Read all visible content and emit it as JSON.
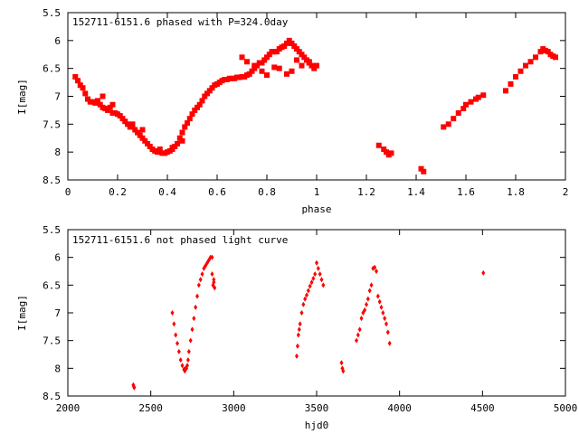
{
  "chart_data": [
    {
      "type": "scatter",
      "title": "152711-6151.6 phased with P=324.0day",
      "xlabel": "phase",
      "ylabel": "I[mag]",
      "xlim": [
        0,
        2
      ],
      "ylim": [
        5.5,
        8.5
      ],
      "y_inverted": true,
      "xticks": [
        "0",
        "0.2",
        "0.4",
        "0.6",
        "0.8",
        "1",
        "1.2",
        "1.4",
        "1.6",
        "1.8",
        "2"
      ],
      "yticks": [
        "5.5",
        "6",
        "6.5",
        "7",
        "7.5",
        "8",
        "8.5"
      ],
      "marker_color": "#ff0000",
      "marker": "square",
      "series": [
        {
          "x": [
            0.03,
            0.04,
            0.05,
            0.06,
            0.07,
            0.08,
            0.09,
            0.1,
            0.11,
            0.12,
            0.13,
            0.14,
            0.15,
            0.16,
            0.17,
            0.18,
            0.19,
            0.2,
            0.21,
            0.22,
            0.23,
            0.24,
            0.25,
            0.26,
            0.27,
            0.28,
            0.29,
            0.3,
            0.31,
            0.32,
            0.33,
            0.34,
            0.35,
            0.36,
            0.37,
            0.38,
            0.39,
            0.4,
            0.41,
            0.42,
            0.43,
            0.44,
            0.45,
            0.46,
            0.47,
            0.48,
            0.49,
            0.5,
            0.51,
            0.52,
            0.53,
            0.54,
            0.55,
            0.56,
            0.57,
            0.58,
            0.59,
            0.6,
            0.61,
            0.62,
            0.63,
            0.64,
            0.65,
            0.66,
            0.67,
            0.68,
            0.69,
            0.7,
            0.71,
            0.72,
            0.73,
            0.74,
            0.75,
            0.76,
            0.77,
            0.78,
            0.79,
            0.8,
            0.81,
            0.82,
            0.83,
            0.84,
            0.85,
            0.86,
            0.87,
            0.88,
            0.89,
            0.9,
            0.91,
            0.92,
            0.93,
            0.94,
            0.95,
            0.96,
            0.97,
            0.98,
            0.99,
            1.0,
            0.7,
            0.72,
            0.75,
            0.78,
            0.8,
            0.83,
            0.85,
            0.88,
            0.9,
            0.92,
            0.94,
            0.97,
            0.26,
            0.3,
            0.37,
            0.42,
            0.46,
            0.14,
            0.18,
            0.19,
            1.25,
            1.27,
            1.28,
            1.29,
            1.3,
            1.42,
            1.43,
            1.51,
            1.53,
            1.55,
            1.57,
            1.59,
            1.6,
            1.62,
            1.64,
            1.65,
            1.67,
            1.76,
            1.78,
            1.8,
            1.82,
            1.84,
            1.86,
            1.88,
            1.9,
            1.91,
            1.92,
            1.93,
            1.94,
            1.95,
            1.96
          ],
          "y": [
            6.65,
            6.72,
            6.8,
            6.85,
            6.95,
            7.05,
            7.1,
            7.1,
            7.12,
            7.08,
            7.15,
            7.2,
            7.22,
            7.25,
            7.2,
            7.3,
            7.3,
            7.32,
            7.35,
            7.4,
            7.45,
            7.5,
            7.55,
            7.55,
            7.6,
            7.65,
            7.7,
            7.75,
            7.8,
            7.85,
            7.9,
            7.95,
            7.98,
            8.0,
            8.0,
            8.02,
            8.02,
            8.0,
            7.98,
            7.95,
            7.9,
            7.85,
            7.75,
            7.65,
            7.55,
            7.48,
            7.4,
            7.32,
            7.25,
            7.2,
            7.15,
            7.08,
            7.0,
            6.95,
            6.9,
            6.85,
            6.8,
            6.78,
            6.75,
            6.72,
            6.7,
            6.7,
            6.68,
            6.68,
            6.68,
            6.66,
            6.66,
            6.65,
            6.65,
            6.62,
            6.6,
            6.55,
            6.5,
            6.45,
            6.4,
            6.4,
            6.35,
            6.3,
            6.25,
            6.2,
            6.2,
            6.2,
            6.15,
            6.12,
            6.1,
            6.05,
            6.0,
            6.05,
            6.1,
            6.15,
            6.2,
            6.25,
            6.3,
            6.35,
            6.4,
            6.45,
            6.5,
            6.45,
            6.3,
            6.38,
            6.45,
            6.55,
            6.62,
            6.48,
            6.5,
            6.6,
            6.55,
            6.35,
            6.45,
            6.38,
            7.5,
            7.6,
            7.95,
            7.92,
            7.8,
            7.0,
            7.15,
            7.3,
            7.88,
            7.95,
            8.0,
            8.05,
            8.02,
            8.3,
            8.35,
            7.55,
            7.5,
            7.4,
            7.3,
            7.22,
            7.15,
            7.1,
            7.05,
            7.02,
            6.98,
            6.9,
            6.78,
            6.65,
            6.55,
            6.45,
            6.38,
            6.3,
            6.2,
            6.15,
            6.18,
            6.2,
            6.25,
            6.28,
            6.3
          ]
        }
      ]
    },
    {
      "type": "scatter",
      "title": "152711-6151.6 not phased light curve",
      "xlabel": "hjd0",
      "ylabel": "I[mag]",
      "xlim": [
        2000,
        5000
      ],
      "ylim": [
        5.5,
        8.5
      ],
      "y_inverted": true,
      "xticks": [
        "2000",
        "2500",
        "3000",
        "3500",
        "4000",
        "4500",
        "5000"
      ],
      "yticks": [
        "5.5",
        "6",
        "6.5",
        "7",
        "7.5",
        "8",
        "8.5"
      ],
      "marker_color": "#ff0000",
      "marker": "diamond",
      "series": [
        {
          "x": [
            2395,
            2398,
            2400,
            2630,
            2640,
            2650,
            2660,
            2670,
            2680,
            2690,
            2700,
            2705,
            2710,
            2715,
            2720,
            2725,
            2730,
            2740,
            2750,
            2760,
            2770,
            2780,
            2790,
            2800,
            2810,
            2820,
            2830,
            2840,
            2850,
            2860,
            2870,
            2875,
            2880,
            2885,
            2880,
            2870,
            3380,
            3385,
            3390,
            3395,
            3400,
            3410,
            3420,
            3430,
            3440,
            3450,
            3460,
            3470,
            3480,
            3490,
            3500,
            3510,
            3520,
            3530,
            3540,
            3650,
            3655,
            3660,
            3740,
            3750,
            3760,
            3770,
            3780,
            3790,
            3800,
            3810,
            3820,
            3830,
            3840,
            3850,
            3860,
            3870,
            3880,
            3890,
            3900,
            3910,
            3920,
            3930,
            3940,
            4505
          ],
          "y": [
            8.3,
            8.33,
            8.35,
            7.0,
            7.2,
            7.4,
            7.55,
            7.7,
            7.85,
            7.95,
            8.02,
            8.05,
            8.0,
            8.0,
            7.95,
            7.85,
            7.7,
            7.5,
            7.3,
            7.1,
            6.9,
            6.7,
            6.5,
            6.4,
            6.3,
            6.2,
            6.15,
            6.1,
            6.05,
            6.0,
            6.0,
            6.5,
            6.45,
            6.55,
            6.4,
            6.3,
            7.78,
            7.6,
            7.4,
            7.3,
            7.2,
            7.0,
            6.85,
            6.75,
            6.68,
            6.6,
            6.52,
            6.45,
            6.38,
            6.3,
            6.1,
            6.2,
            6.3,
            6.4,
            6.5,
            7.9,
            8.0,
            8.05,
            7.5,
            7.4,
            7.3,
            7.1,
            7.0,
            6.95,
            6.85,
            6.75,
            6.6,
            6.5,
            6.2,
            6.18,
            6.25,
            6.7,
            6.8,
            6.9,
            7.0,
            7.1,
            7.2,
            7.35,
            7.55,
            6.28
          ]
        }
      ]
    }
  ]
}
